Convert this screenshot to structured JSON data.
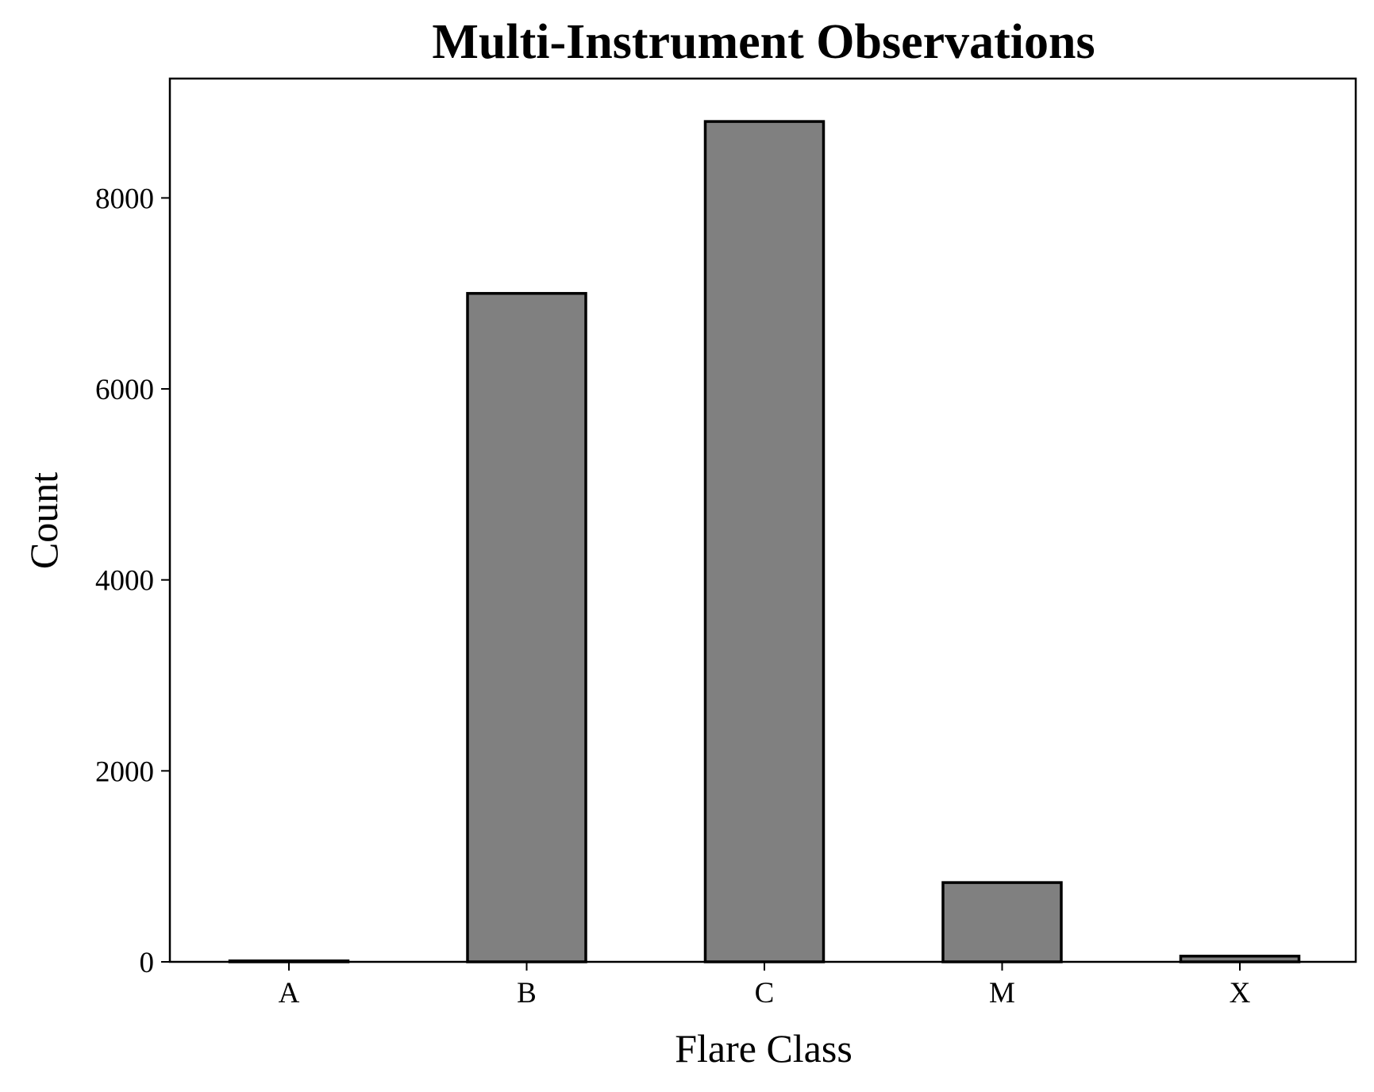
{
  "chart_data": {
    "type": "bar",
    "title": "Multi-Instrument Observations",
    "xlabel": "Flare Class",
    "ylabel": "Count",
    "categories": [
      "A",
      "B",
      "C",
      "M",
      "X"
    ],
    "values": [
      10,
      7000,
      8800,
      830,
      60
    ],
    "ylim": [
      0,
      9250
    ],
    "yticks": [
      0,
      2000,
      4000,
      6000,
      8000
    ],
    "ytick_labels": [
      "0",
      "2000",
      "4000",
      "6000",
      "8000"
    ],
    "bar_color": "#808080",
    "edge_color": "#000000",
    "grid": false,
    "legend": false
  }
}
